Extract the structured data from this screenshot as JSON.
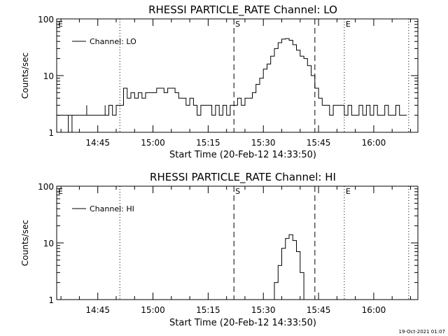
{
  "footer_date": "19-Oct-2021 01:07",
  "chart_data": [
    {
      "type": "line",
      "title": "RHESSI PARTICLE_RATE Channel: LO",
      "xlabel": "Start Time (20-Feb-12 14:33:50)",
      "ylabel": "Counts/sec",
      "y_scale": "log",
      "ylim": [
        1,
        100
      ],
      "xlim": [
        "14:33:50",
        "16:12:00"
      ],
      "x_ticks": [
        "14:45",
        "15:00",
        "15:15",
        "15:30",
        "15:45",
        "16:00"
      ],
      "y_ticks": [
        "1",
        "10",
        "100"
      ],
      "legend": {
        "position": "top-left",
        "label": "Channel: LO"
      },
      "markers": [
        {
          "label": "E",
          "time": "14:33:50",
          "style": "dotted"
        },
        {
          "label": "",
          "time": "14:51:00",
          "style": "dotted"
        },
        {
          "label": "S",
          "time": "15:22:00",
          "style": "dashed"
        },
        {
          "label": "",
          "time": "15:44:00",
          "style": "dashed"
        },
        {
          "label": "E",
          "time": "15:52:00",
          "style": "dotted"
        },
        {
          "label": "",
          "time": "16:09:30",
          "style": "dotted"
        }
      ],
      "series": [
        {
          "name": "Channel: LO",
          "x": [
            "14:34",
            "14:36",
            "14:37",
            "14:37",
            "14:38",
            "14:38",
            "14:39",
            "14:40",
            "14:42",
            "14:42",
            "14:43",
            "14:46",
            "14:47",
            "14:47",
            "14:48",
            "14:49",
            "14:50",
            "14:51",
            "14:52",
            "14:53",
            "14:54",
            "14:55",
            "14:56",
            "14:57",
            "14:58",
            "14:59",
            "15:00",
            "15:01",
            "15:02",
            "15:03",
            "15:04",
            "15:05",
            "15:06",
            "15:07",
            "15:08",
            "15:09",
            "15:10",
            "15:11",
            "15:12",
            "15:13",
            "15:14",
            "15:15",
            "15:16",
            "15:17",
            "15:18",
            "15:19",
            "15:20",
            "15:21",
            "15:22",
            "15:23",
            "15:24",
            "15:25",
            "15:26",
            "15:27",
            "15:28",
            "15:29",
            "15:30",
            "15:31",
            "15:32",
            "15:33",
            "15:34",
            "15:35",
            "15:36",
            "15:37",
            "15:38",
            "15:39",
            "15:40",
            "15:41",
            "15:42",
            "15:43",
            "15:44",
            "15:45",
            "15:46",
            "15:47",
            "15:48",
            "15:49",
            "15:50",
            "15:51",
            "15:52",
            "15:53",
            "15:54",
            "15:55",
            "15:56",
            "15:57",
            "15:58",
            "15:59",
            "16:00",
            "16:01",
            "16:02",
            "16:03",
            "16:04",
            "16:05",
            "16:06",
            "16:07",
            "16:08",
            "16:09"
          ],
          "y": [
            2,
            2,
            1,
            2,
            1,
            2,
            2,
            2,
            3,
            2,
            2,
            2,
            3,
            2,
            3,
            2,
            3,
            3,
            6,
            4,
            5,
            4,
            5,
            4,
            5,
            5,
            5,
            6,
            6,
            5,
            6,
            6,
            5,
            4,
            4,
            3,
            4,
            3,
            2,
            3,
            3,
            3,
            2,
            3,
            2,
            3,
            2,
            3,
            3,
            4,
            3,
            4,
            4,
            5,
            7,
            9,
            13,
            16,
            22,
            30,
            38,
            44,
            45,
            42,
            35,
            28,
            22,
            20,
            15,
            10,
            6,
            4,
            3,
            3,
            2,
            3,
            3,
            3,
            2,
            3,
            2,
            2,
            3,
            2,
            3,
            2,
            3,
            2,
            2,
            3,
            2,
            2,
            3,
            2,
            2,
            2
          ]
        }
      ]
    },
    {
      "type": "line",
      "title": "RHESSI PARTICLE_RATE Channel: HI",
      "xlabel": "Start Time (20-Feb-12 14:33:50)",
      "ylabel": "Counts/sec",
      "y_scale": "log",
      "ylim": [
        1,
        100
      ],
      "xlim": [
        "14:33:50",
        "16:12:00"
      ],
      "x_ticks": [
        "14:45",
        "15:00",
        "15:15",
        "15:30",
        "15:45",
        "16:00"
      ],
      "y_ticks": [
        "1",
        "10",
        "100"
      ],
      "legend": {
        "position": "top-left",
        "label": "Channel: HI"
      },
      "markers": [
        {
          "label": "E",
          "time": "14:33:50",
          "style": "dotted"
        },
        {
          "label": "",
          "time": "14:51:00",
          "style": "dotted"
        },
        {
          "label": "S",
          "time": "15:22:00",
          "style": "dashed"
        },
        {
          "label": "",
          "time": "15:44:00",
          "style": "dashed"
        },
        {
          "label": "E",
          "time": "15:52:00",
          "style": "dotted"
        },
        {
          "label": "",
          "time": "16:09:30",
          "style": "dotted"
        }
      ],
      "series": [
        {
          "name": "Channel: HI",
          "x": [
            "15:32",
            "15:33",
            "15:34",
            "15:35",
            "15:36",
            "15:37",
            "15:38",
            "15:39",
            "15:40",
            "15:41"
          ],
          "y": [
            1,
            2,
            4,
            8,
            12,
            14,
            11,
            7,
            3,
            1
          ]
        }
      ]
    }
  ]
}
